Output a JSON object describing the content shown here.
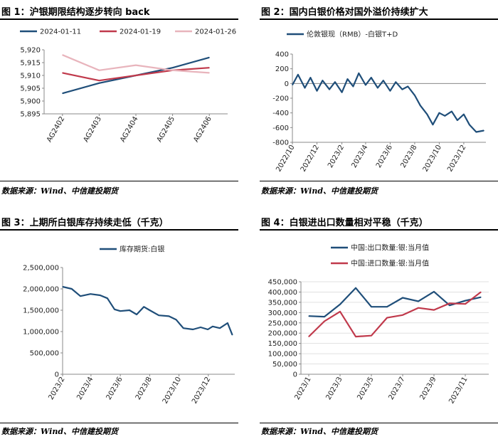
{
  "source_label": "数据来源：Wind、中信建投期货",
  "chart_data": [
    {
      "id": "fig1",
      "type": "line",
      "title": "图 1：沪银期限结构逐步转向 back",
      "categories": [
        "AG2402",
        "AG2403",
        "AG2404",
        "AG2405",
        "AG2406"
      ],
      "series": [
        {
          "name": "2024-01-11",
          "color": "#1f4e79",
          "values": [
            5903,
            5907,
            5910,
            5913,
            5917
          ]
        },
        {
          "name": "2024-01-19",
          "color": "#c0394b",
          "values": [
            5911,
            5908,
            5910,
            5912,
            5913
          ]
        },
        {
          "name": "2024-01-26",
          "color": "#e8b4bc",
          "values": [
            5918,
            5912,
            5914,
            5912,
            5911
          ]
        }
      ],
      "ylim": [
        5895,
        5920
      ],
      "yticks": [
        5895,
        5900,
        5905,
        5910,
        5915,
        5920
      ],
      "ytick_labels": [
        "5,895",
        "5,900",
        "5,905",
        "5,910",
        "5,915",
        "5,920"
      ],
      "legend": "top"
    },
    {
      "id": "fig2",
      "type": "line",
      "title": "图 2：国内白银价格对国外溢价持续扩大",
      "series": [
        {
          "name": "伦敦银现（RMB）-白银T+D",
          "color": "#1f4e79",
          "x": [
            "2022-10-01",
            "2022-10-15",
            "2022-11-01",
            "2022-11-15",
            "2022-12-01",
            "2022-12-15",
            "2023-01-01",
            "2023-01-15",
            "2023-02-01",
            "2023-02-15",
            "2023-03-01",
            "2023-03-15",
            "2023-04-01",
            "2023-04-15",
            "2023-05-01",
            "2023-05-15",
            "2023-06-01",
            "2023-06-15",
            "2023-07-01",
            "2023-07-15",
            "2023-08-01",
            "2023-08-15",
            "2023-09-01",
            "2023-09-15",
            "2023-10-01",
            "2023-10-15",
            "2023-11-01",
            "2023-11-15",
            "2023-12-01",
            "2023-12-15",
            "2024-01-01",
            "2024-01-20"
          ],
          "values": [
            -20,
            120,
            -60,
            80,
            -100,
            40,
            -80,
            20,
            -120,
            60,
            -40,
            140,
            -20,
            80,
            -60,
            40,
            -100,
            20,
            -80,
            -40,
            -160,
            -300,
            -420,
            -560,
            -400,
            -440,
            -380,
            -500,
            -420,
            -560,
            -660,
            -640
          ]
        }
      ],
      "xtick_labels": [
        "2022/10",
        "2022/12",
        "2023/2",
        "2023/4",
        "2023/6",
        "2023/8",
        "2023/10",
        "2023/12"
      ],
      "xticks": [
        "2022-10-01",
        "2022-12-01",
        "2023-02-01",
        "2023-04-01",
        "2023-06-01",
        "2023-08-01",
        "2023-10-01",
        "2023-12-01"
      ],
      "xlim": [
        "2022-10-01",
        "2024-01-25"
      ],
      "ylim": [
        -800,
        400
      ],
      "yticks": [
        -800,
        -600,
        -400,
        -200,
        0,
        200,
        400
      ],
      "ytick_labels": [
        "-800",
        "-600",
        "-400",
        "-200",
        "0",
        "200",
        "400"
      ],
      "legend": "top"
    },
    {
      "id": "fig3",
      "type": "line",
      "title": "图 3：上期所白银库存持续走低（千克）",
      "series": [
        {
          "name": "库存期货:白银",
          "color": "#1f4e79",
          "x": [
            "2023-02-01",
            "2023-02-20",
            "2023-03-10",
            "2023-03-31",
            "2023-04-20",
            "2023-05-05",
            "2023-05-20",
            "2023-06-01",
            "2023-06-20",
            "2023-07-05",
            "2023-07-20",
            "2023-08-01",
            "2023-08-20",
            "2023-09-10",
            "2023-09-25",
            "2023-10-10",
            "2023-10-30",
            "2023-11-15",
            "2023-11-30",
            "2023-12-10",
            "2023-12-25",
            "2024-01-10",
            "2024-01-20"
          ],
          "values": [
            2050000,
            2000000,
            1830000,
            1880000,
            1850000,
            1780000,
            1520000,
            1480000,
            1500000,
            1400000,
            1580000,
            1500000,
            1380000,
            1360000,
            1280000,
            1080000,
            1050000,
            1100000,
            1050000,
            1120000,
            1080000,
            1200000,
            920000
          ]
        }
      ],
      "xtick_labels": [
        "2023/2",
        "2023/4",
        "2023/6",
        "2023/8",
        "2023/10",
        "2023/12"
      ],
      "xticks": [
        "2023-02-01",
        "2023-04-01",
        "2023-06-01",
        "2023-08-01",
        "2023-10-01",
        "2023-12-01"
      ],
      "xlim": [
        "2023-02-01",
        "2024-01-25"
      ],
      "ylim": [
        0,
        2500000
      ],
      "yticks": [
        0,
        500000,
        1000000,
        1500000,
        2000000,
        2500000
      ],
      "ytick_labels": [
        "0",
        "500,000",
        "1,000,000",
        "1,500,000",
        "2,000,000",
        "2,500,000"
      ],
      "legend": "top"
    },
    {
      "id": "fig4",
      "type": "line",
      "title": "图 4：白银进出口数量相对平稳（千克）",
      "series": [
        {
          "name": "中国:出口数量:银:当月值",
          "color": "#1f4e79",
          "x": [
            "2023-01",
            "2023-02",
            "2023-03",
            "2023-04",
            "2023-05",
            "2023-06",
            "2023-07",
            "2023-08",
            "2023-09",
            "2023-10",
            "2023-11",
            "2023-12"
          ],
          "values": [
            283000,
            280000,
            340000,
            420000,
            328000,
            328000,
            372000,
            355000,
            402000,
            335000,
            358000,
            375000
          ]
        },
        {
          "name": "中国:进口数量:银:当月值",
          "color": "#c0394b",
          "x": [
            "2023-01",
            "2023-02",
            "2023-03",
            "2023-04",
            "2023-05",
            "2023-06",
            "2023-07",
            "2023-08",
            "2023-09",
            "2023-10",
            "2023-11",
            "2023-12"
          ],
          "values": [
            183000,
            258000,
            305000,
            183000,
            188000,
            275000,
            288000,
            323000,
            313000,
            345000,
            342000,
            400000
          ]
        }
      ],
      "xtick_labels": [
        "2023/1",
        "2023/3",
        "2023/5",
        "2023/7",
        "2023/9",
        "2023/11"
      ],
      "ylim": [
        0,
        450000
      ],
      "yticks": [
        0,
        50000,
        100000,
        150000,
        200000,
        250000,
        300000,
        350000,
        400000,
        450000
      ],
      "ytick_labels": [
        "0",
        "50,000",
        "100,000",
        "150,000",
        "200,000",
        "250,000",
        "300,000",
        "350,000",
        "400,000",
        "450,000"
      ],
      "legend": "top"
    }
  ]
}
